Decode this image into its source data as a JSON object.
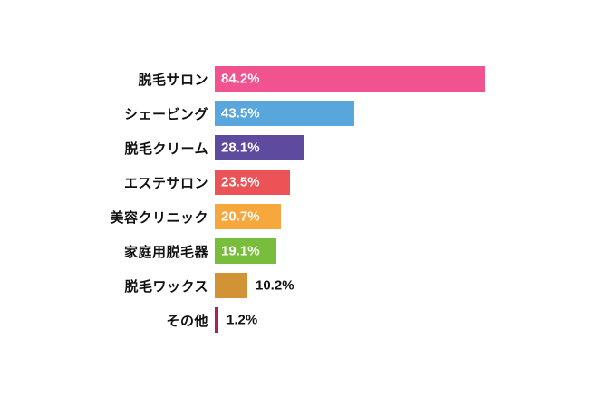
{
  "chart_data": {
    "type": "bar",
    "orientation": "horizontal",
    "title": "",
    "xlabel": "",
    "ylabel": "",
    "xlim": [
      0,
      100
    ],
    "grid": false,
    "legend": false,
    "categories": [
      "脱毛サロン",
      "シェービング",
      "脱毛クリーム",
      "エステサロン",
      "美容クリニック",
      "家庭用脱毛器",
      "脱毛ワックス",
      "その他"
    ],
    "values": [
      84.2,
      43.5,
      28.1,
      23.5,
      20.7,
      19.1,
      10.2,
      1.2
    ],
    "value_labels": [
      "84.2%",
      "43.5%",
      "28.1%",
      "23.5%",
      "20.7%",
      "19.1%",
      "10.2%",
      "1.2%"
    ],
    "colors": [
      "#F0538F",
      "#58A6DB",
      "#5E4B9F",
      "#EB5356",
      "#F6A83C",
      "#79BD3C",
      "#D19336",
      "#B01E56"
    ],
    "value_label_colors_inside": "#ffffff",
    "value_label_colors_outside": "#111111"
  }
}
